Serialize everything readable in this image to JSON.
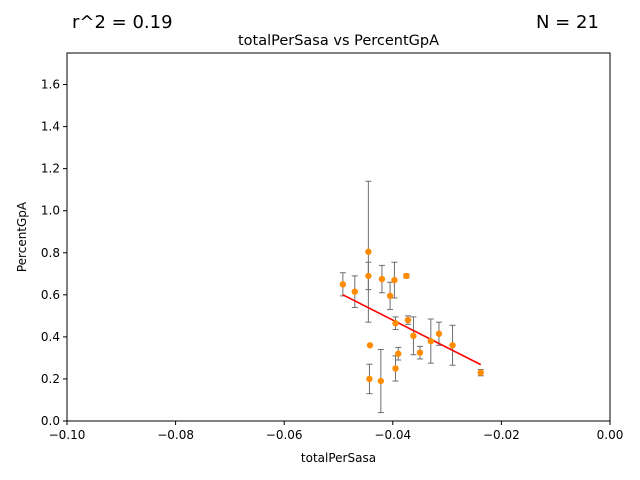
{
  "header": {
    "r2_text": "r^2 = 0.19",
    "n_text": "N = 21"
  },
  "chart_data": {
    "type": "scatter",
    "title": "totalPerSasa vs PercentGpA",
    "xlabel": "totalPerSasa",
    "ylabel": "PercentGpA",
    "xlim": [
      -0.1,
      0.0
    ],
    "ylim": [
      0.0,
      1.75
    ],
    "xticks": [
      -0.1,
      -0.08,
      -0.06,
      -0.04,
      -0.02,
      0.0
    ],
    "xtick_labels": [
      "−0.10",
      "−0.08",
      "−0.06",
      "−0.04",
      "−0.02",
      "0.00"
    ],
    "yticks": [
      0.0,
      0.2,
      0.4,
      0.6,
      0.8,
      1.0,
      1.2,
      1.4,
      1.6
    ],
    "ytick_labels": [
      "0.0",
      "0.2",
      "0.4",
      "0.6",
      "0.8",
      "1.0",
      "1.2",
      "1.4",
      "1.6"
    ],
    "grid": false,
    "colors": {
      "points": "#ff8c00",
      "errorbars": "#6e6e6e",
      "fit": "#ff0000"
    },
    "points": [
      {
        "x": -0.0492,
        "y": 0.65,
        "err": 0.055
      },
      {
        "x": -0.047,
        "y": 0.615,
        "err": 0.075
      },
      {
        "x": -0.0445,
        "y": 0.805,
        "err": 0.335
      },
      {
        "x": -0.0445,
        "y": 0.69,
        "err": 0.065
      },
      {
        "x": -0.0442,
        "y": 0.36,
        "err": 0.0
      },
      {
        "x": -0.0443,
        "y": 0.2,
        "err": 0.07
      },
      {
        "x": -0.0422,
        "y": 0.19,
        "err": 0.15
      },
      {
        "x": -0.042,
        "y": 0.675,
        "err": 0.065
      },
      {
        "x": -0.0405,
        "y": 0.595,
        "err": 0.065
      },
      {
        "x": -0.0397,
        "y": 0.67,
        "err": 0.085
      },
      {
        "x": -0.0395,
        "y": 0.465,
        "err": 0.03
      },
      {
        "x": -0.0395,
        "y": 0.25,
        "err": 0.06
      },
      {
        "x": -0.039,
        "y": 0.32,
        "err": 0.03
      },
      {
        "x": -0.0375,
        "y": 0.69,
        "err": 0.01
      },
      {
        "x": -0.0372,
        "y": 0.48,
        "err": 0.02
      },
      {
        "x": -0.0362,
        "y": 0.405,
        "err": 0.09
      },
      {
        "x": -0.035,
        "y": 0.325,
        "err": 0.03
      },
      {
        "x": -0.033,
        "y": 0.38,
        "err": 0.105
      },
      {
        "x": -0.0315,
        "y": 0.415,
        "err": 0.055
      },
      {
        "x": -0.029,
        "y": 0.36,
        "err": 0.095
      },
      {
        "x": -0.0238,
        "y": 0.23,
        "err": 0.015
      }
    ],
    "fit_line": {
      "x": [
        -0.0492,
        -0.0238
      ],
      "y": [
        0.6,
        0.268
      ]
    }
  }
}
